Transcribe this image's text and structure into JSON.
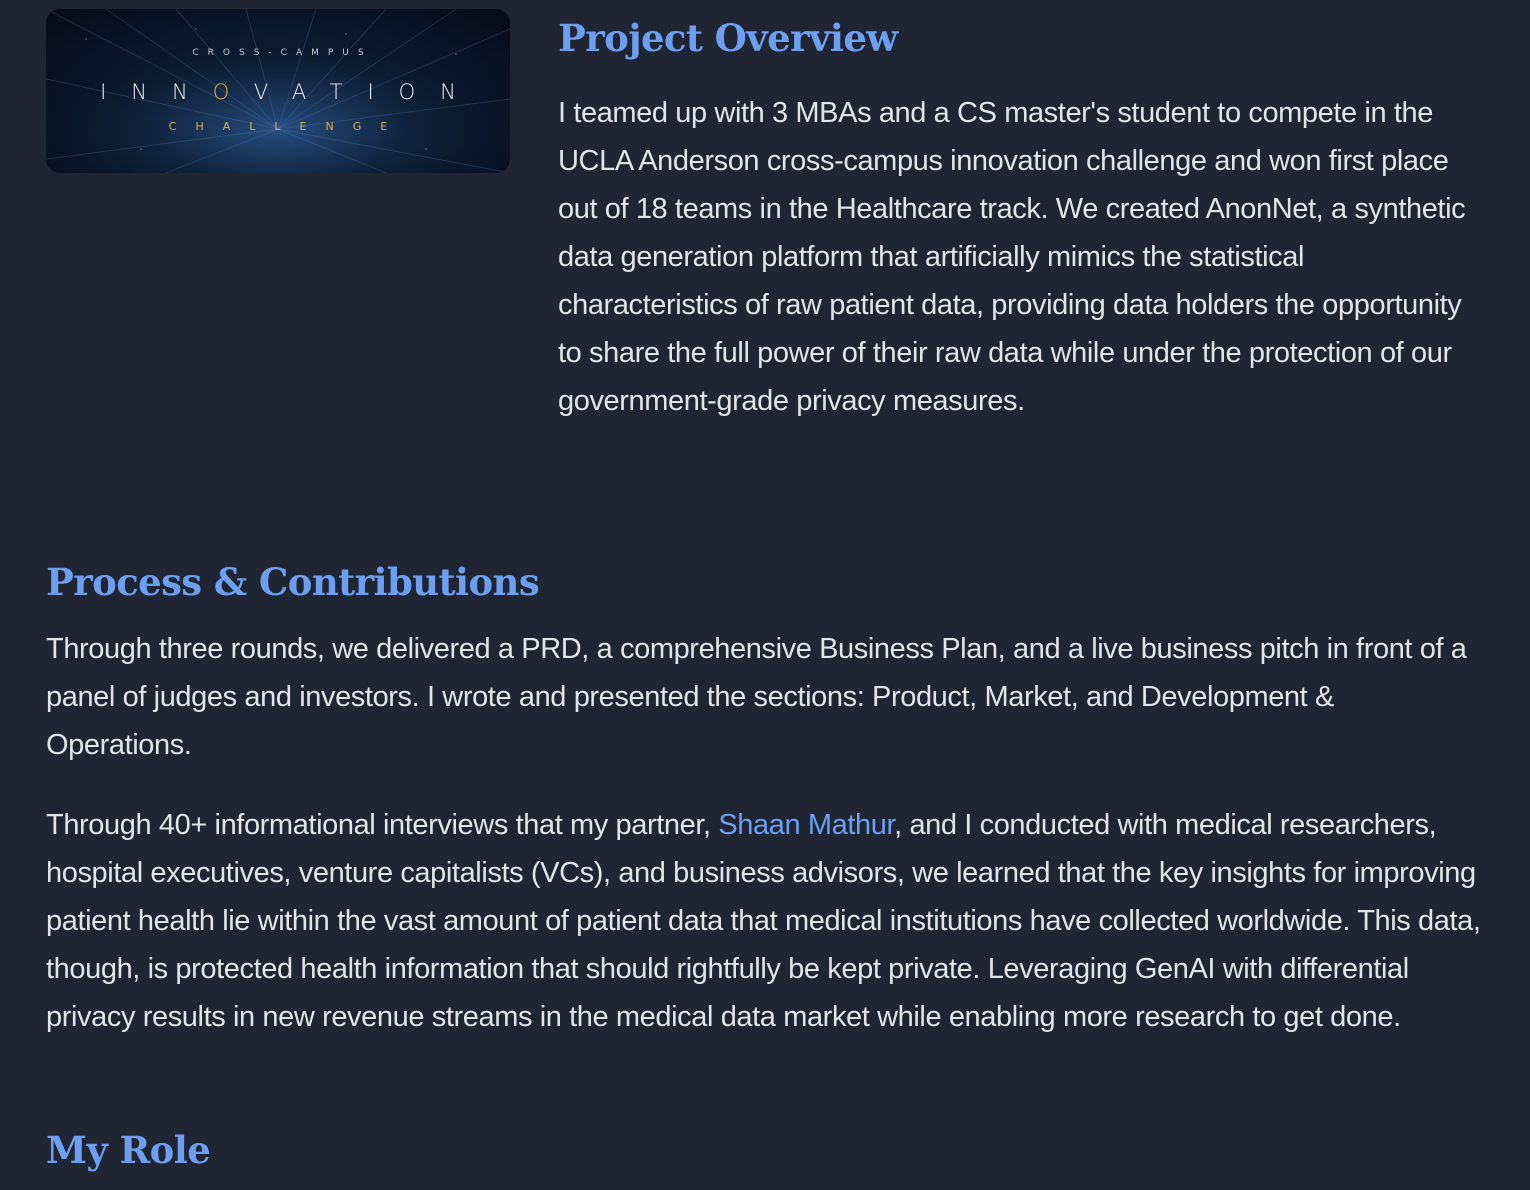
{
  "hero": {
    "eyebrow": "CROSS-CAMPUS",
    "title_part1": "INN",
    "title_o": "O",
    "title_part2": "VATION",
    "subtitle": "CHALLENGE"
  },
  "overview": {
    "title": "Project Overview",
    "body": "I teamed up with 3 MBAs and a CS master's student to compete in the UCLA Anderson cross-campus innovation challenge and won first place out of 18 teams in the Healthcare track. We created AnonNet, a synthetic data generation platform that artificially mimics the statistical characteristics of raw patient data, providing data holders the opportunity to share the full power of their raw data while under the protection of our government-grade privacy measures."
  },
  "process": {
    "title": "Process & Contributions",
    "paragraph1": "Through three rounds, we delivered a PRD, a comprehensive Business Plan, and a live business pitch in front of a panel of judges and investors. I wrote and presented the sections: Product, Market, and Development & Operations.",
    "paragraph2_before_link": "Through 40+ informational interviews that my partner, ",
    "paragraph2_link": "Shaan Mathur",
    "paragraph2_after_link": ", and I conducted with medical researchers, hospital executives, venture capitalists (VCs), and business advisors, we learned that the key insights for improving patient health lie within the vast amount of patient data that medical institutions have collected worldwide. This data, though, is protected health information that should rightfully be kept private. Leveraging GenAI with differential privacy results in new revenue streams in the medical data market while enabling more research to get done."
  },
  "role": {
    "title": "My Role"
  },
  "colors": {
    "background": "#1f2533",
    "heading": "#6d9ff0",
    "text": "#e2e4e9",
    "link": "#6d9ff0",
    "hero_gold": "#e0ad45"
  }
}
